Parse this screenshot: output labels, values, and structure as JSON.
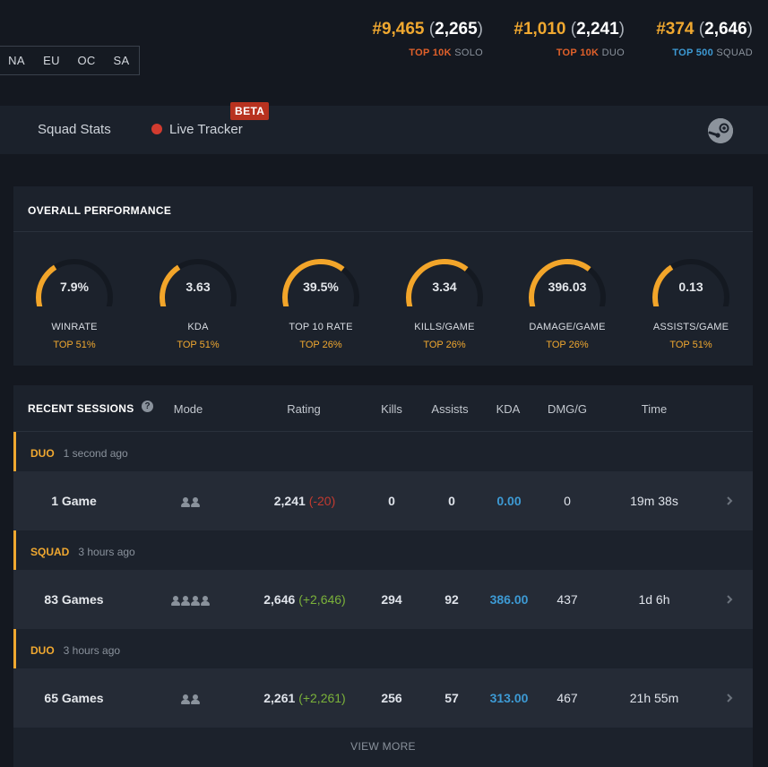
{
  "regions": [
    "NA",
    "EU",
    "OC",
    "SA"
  ],
  "ranks": [
    {
      "rank": "#9,465",
      "rating": "2,265",
      "tier": "TOP 10K",
      "mode": "SOLO",
      "tier_color": "#e0602a"
    },
    {
      "rank": "#1,010",
      "rating": "2,241",
      "tier": "TOP 10K",
      "mode": "DUO",
      "tier_color": "#e0602a"
    },
    {
      "rank": "#374",
      "rating": "2,646",
      "tier": "TOP 500",
      "mode": "SQUAD",
      "tier_color": "#3d9ad4"
    }
  ],
  "nav": {
    "squad_stats": "Squad Stats",
    "live_tracker": "Live Tracker",
    "beta": "BETA",
    "steam_icon": "steam-icon"
  },
  "performance": {
    "title": "OVERALL PERFORMANCE",
    "gauges": [
      {
        "value": "7.9%",
        "label": "WINRATE",
        "rank": "TOP 51%",
        "fill": 0.38
      },
      {
        "value": "3.63",
        "label": "KDA",
        "rank": "TOP 51%",
        "fill": 0.38
      },
      {
        "value": "39.5%",
        "label": "TOP 10 RATE",
        "rank": "TOP 26%",
        "fill": 0.64
      },
      {
        "value": "3.34",
        "label": "KILLS/GAME",
        "rank": "TOP 26%",
        "fill": 0.64
      },
      {
        "value": "396.03",
        "label": "DAMAGE/GAME",
        "rank": "TOP 26%",
        "fill": 0.64
      },
      {
        "value": "0.13",
        "label": "ASSISTS/GAME",
        "rank": "TOP 51%",
        "fill": 0.38
      }
    ]
  },
  "sessions": {
    "title": "RECENT SESSIONS",
    "help_icon": "question-icon",
    "columns": {
      "mode": "Mode",
      "rating": "Rating",
      "kills": "Kills",
      "assists": "Assists",
      "kda": "KDA",
      "dmg": "DMG/G",
      "time": "Time"
    },
    "groups": [
      {
        "mode": "DUO",
        "ago": "1 second ago",
        "players": 2,
        "games": "1 Game",
        "rating": "2,241",
        "delta": "(-20)",
        "delta_sign": "neg",
        "kills": "0",
        "assists": "0",
        "kda": "0.00",
        "dmg": "0",
        "time": "19m 38s"
      },
      {
        "mode": "SQUAD",
        "ago": "3 hours ago",
        "players": 4,
        "games": "83 Games",
        "rating": "2,646",
        "delta": "(+2,646)",
        "delta_sign": "pos",
        "kills": "294",
        "assists": "92",
        "kda": "386.00",
        "dmg": "437",
        "time": "1d 6h"
      },
      {
        "mode": "DUO",
        "ago": "3 hours ago",
        "players": 2,
        "games": "65 Games",
        "rating": "2,261",
        "delta": "(+2,261)",
        "delta_sign": "pos",
        "kills": "256",
        "assists": "57",
        "kda": "313.00",
        "dmg": "467",
        "time": "21h 55m"
      }
    ],
    "view_more": "VIEW MORE"
  }
}
